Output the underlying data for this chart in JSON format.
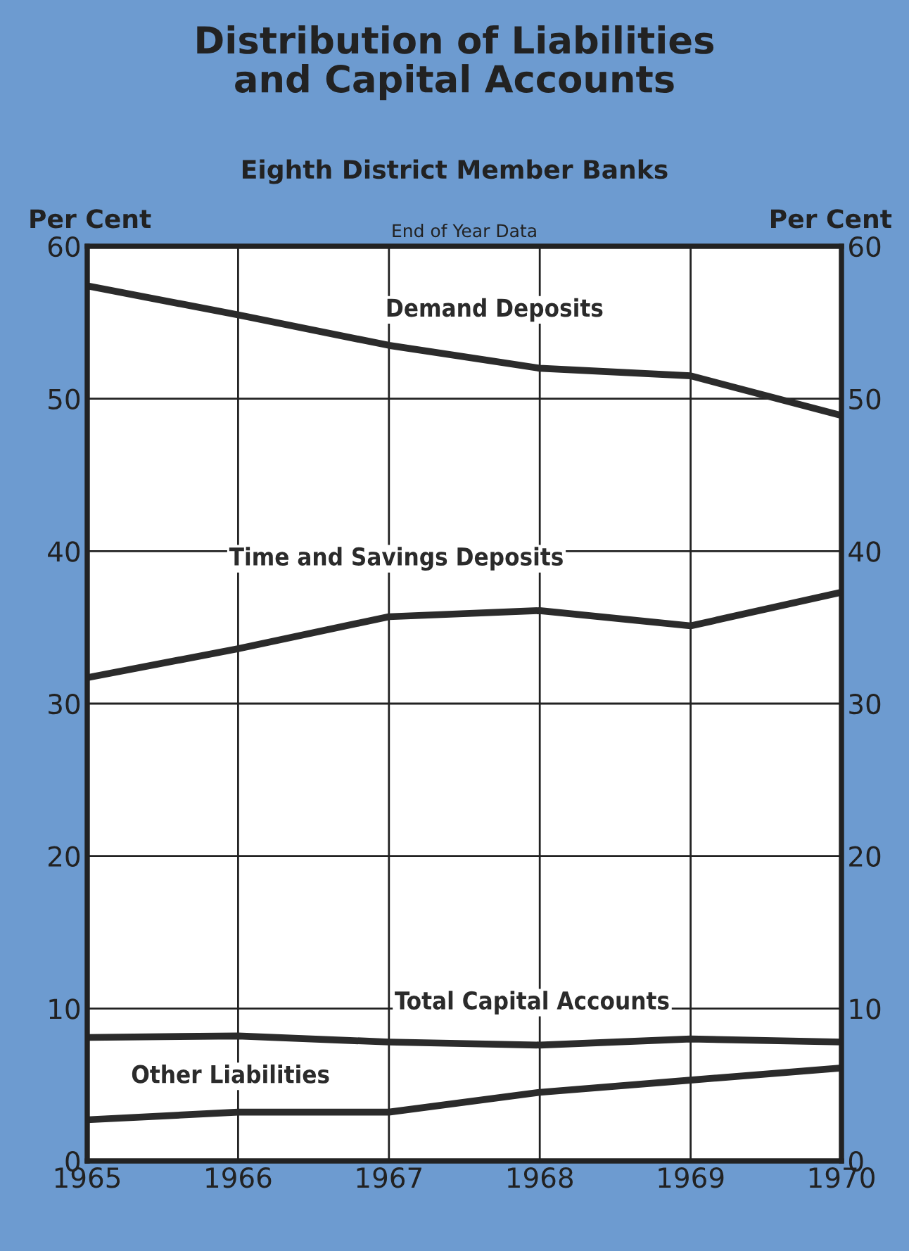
{
  "chart_data": {
    "type": "line",
    "title": "Distribution of Liabilities\nand Capital Accounts",
    "subtitle": "Eighth District Member Banks",
    "ylabel": "Per Cent",
    "y2label": "Per Cent",
    "annotations": [
      "End of Year Data"
    ],
    "x": [
      1965,
      1966,
      1967,
      1968,
      1969,
      1970
    ],
    "series": [
      {
        "name": "Demand Deposits",
        "color": "#2b2b2b",
        "values": [
          57.4,
          55.5,
          53.5,
          52.0,
          51.5,
          48.9
        ]
      },
      {
        "name": "Time and Savings Deposits",
        "color": "#2b2b2b",
        "values": [
          31.7,
          33.6,
          35.7,
          36.1,
          35.1,
          37.3
        ]
      },
      {
        "name": "Total Capital Accounts",
        "color": "#2b2b2b",
        "values": [
          8.1,
          8.2,
          7.8,
          7.6,
          8.0,
          7.8
        ]
      },
      {
        "name": "Other Liabilities",
        "color": "#2b2b2b",
        "values": [
          2.7,
          3.2,
          3.2,
          4.5,
          5.3,
          6.1
        ]
      }
    ],
    "xlim": [
      1965,
      1970
    ],
    "xticks": [
      1965,
      1966,
      1967,
      1968,
      1969,
      1970
    ],
    "ylim": [
      0,
      60
    ],
    "yticks": [
      0,
      10,
      20,
      30,
      40,
      50,
      60
    ],
    "y2lim": [
      0,
      60
    ],
    "y2ticks": [
      0,
      10,
      20,
      30,
      40,
      50,
      60
    ],
    "grid": true,
    "legend": false,
    "marker": "none",
    "line_style": "solid"
  }
}
